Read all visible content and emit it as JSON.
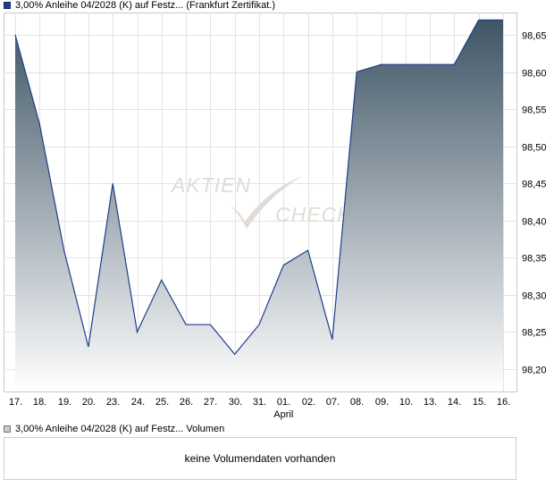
{
  "legend": {
    "price_label": "3,00% Anleihe 04/2028 (K) auf Festz... (Frankfurt Zertifikat.)",
    "volume_label": "3,00% Anleihe 04/2028 (K) auf Festz... Volumen",
    "price_color": "#1f3d8a",
    "volume_color": "#c8c8c8"
  },
  "watermark": {
    "line1": "AKTIEN",
    "line2": "CHECK"
  },
  "volume_panel": {
    "message": "keine Volumendaten vorhanden"
  },
  "chart_data": {
    "type": "area",
    "title": "",
    "xlabel": "",
    "ylabel": "",
    "categories": [
      "17.",
      "18.",
      "19.",
      "20.",
      "23.",
      "24.",
      "25.",
      "26.",
      "27.",
      "30.",
      "31.",
      "01.",
      "02.",
      "07.",
      "08.",
      "09.",
      "10.",
      "13.",
      "14.",
      "15.",
      "16."
    ],
    "month_labels": [
      {
        "index": 11,
        "label": "April"
      }
    ],
    "series": [
      {
        "values": [
          98.65,
          98.53,
          98.36,
          98.23,
          98.45,
          98.25,
          98.32,
          98.26,
          98.26,
          98.22,
          98.26,
          98.34,
          98.36,
          98.24,
          98.6,
          98.61,
          98.61,
          98.61,
          98.61,
          98.67,
          98.67
        ]
      }
    ],
    "yticks": [
      "98,20",
      "98,25",
      "98,30",
      "98,35",
      "98,40",
      "98,45",
      "98,50",
      "98,55",
      "98,60",
      "98,65"
    ],
    "ylim": [
      98.17,
      98.68
    ],
    "grid": true,
    "line_color": "#1f3d8a",
    "fill_top_color": "#3f5566",
    "fill_bottom_color": "#ffffff",
    "axis_position": "right"
  }
}
